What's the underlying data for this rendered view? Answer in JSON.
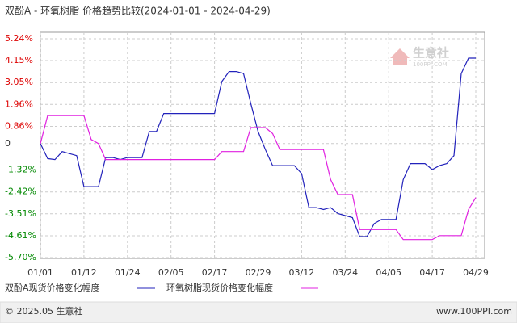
{
  "chart_data": {
    "type": "line",
    "title": "双酚A - 环氧树脂 价格趋势比较(2024-01-01 - 2024-04-29)",
    "categories": [
      "01/01",
      null,
      null,
      null,
      null,
      null,
      "01/12",
      null,
      null,
      null,
      null,
      null,
      "01/24",
      null,
      null,
      null,
      null,
      null,
      "02/05",
      null,
      null,
      null,
      null,
      null,
      "02/17",
      null,
      null,
      null,
      null,
      null,
      "02/29",
      null,
      null,
      null,
      null,
      null,
      "03/12",
      null,
      null,
      null,
      null,
      null,
      "03/24",
      null,
      null,
      null,
      null,
      null,
      "04/05",
      null,
      null,
      null,
      null,
      null,
      "04/17",
      null,
      null,
      null,
      null,
      null,
      "04/29"
    ],
    "series": [
      {
        "name": "双酚A现货价格变化幅度",
        "color": "#2222bb",
        "values": [
          0.0,
          -0.75,
          -0.8,
          -0.4,
          -0.5,
          -0.6,
          -2.15,
          -2.15,
          -2.15,
          -0.7,
          -0.7,
          -0.8,
          -0.7,
          -0.7,
          -0.7,
          0.6,
          0.6,
          1.5,
          1.5,
          1.5,
          1.5,
          1.5,
          1.5,
          1.5,
          1.5,
          3.1,
          3.6,
          3.6,
          3.5,
          2.0,
          0.6,
          -0.3,
          -1.1,
          -1.1,
          -1.1,
          -1.1,
          -1.5,
          -3.2,
          -3.2,
          -3.3,
          -3.2,
          -3.5,
          -3.6,
          -3.7,
          -4.65,
          -4.65,
          -4.0,
          -3.8,
          -3.8,
          -3.8,
          -1.8,
          -1.0,
          -1.0,
          -1.0,
          -1.3,
          -1.1,
          -1.0,
          -0.6,
          3.5,
          4.27,
          4.27
        ]
      },
      {
        "name": "环氧树脂现货价格变化幅度",
        "color": "#e020e0",
        "values": [
          0.0,
          1.4,
          1.4,
          1.4,
          1.4,
          1.4,
          1.4,
          0.2,
          0.0,
          -0.8,
          -0.8,
          -0.8,
          -0.8,
          -0.8,
          -0.8,
          -0.8,
          -0.8,
          -0.8,
          -0.8,
          -0.8,
          -0.8,
          -0.8,
          -0.8,
          -0.8,
          -0.8,
          -0.4,
          -0.4,
          -0.4,
          -0.4,
          0.8,
          0.8,
          0.8,
          0.5,
          -0.3,
          -0.3,
          -0.3,
          -0.3,
          -0.3,
          -0.3,
          -0.3,
          -1.8,
          -2.55,
          -2.55,
          -2.55,
          -4.3,
          -4.3,
          -4.3,
          -4.3,
          -4.3,
          -4.3,
          -4.8,
          -4.8,
          -4.8,
          -4.8,
          -4.8,
          -4.6,
          -4.6,
          -4.6,
          -4.6,
          -3.3,
          -2.7
        ]
      }
    ],
    "ylim": [
      -5.7,
      5.24
    ],
    "yticks": [
      {
        "value": 5.24,
        "label": "5.24%"
      },
      {
        "value": 4.15,
        "label": "4.15%"
      },
      {
        "value": 3.05,
        "label": "3.05%"
      },
      {
        "value": 1.96,
        "label": "1.96%"
      },
      {
        "value": 0.86,
        "label": "0.86%"
      },
      0,
      {
        "value": -1.32,
        "label": "-1.32%"
      },
      {
        "value": -2.42,
        "label": "-2.42%"
      },
      {
        "value": -3.51,
        "label": "-3.51%"
      },
      {
        "value": -4.61,
        "label": "-4.61%"
      },
      {
        "value": -5.7,
        "label": "-5.70%"
      }
    ],
    "grid": true,
    "watermark": {
      "name": "生意社",
      "site": "100PPI.COM"
    },
    "footer": {
      "left": "© 2025.05 生意社",
      "right": "www.100PPI.com"
    }
  }
}
